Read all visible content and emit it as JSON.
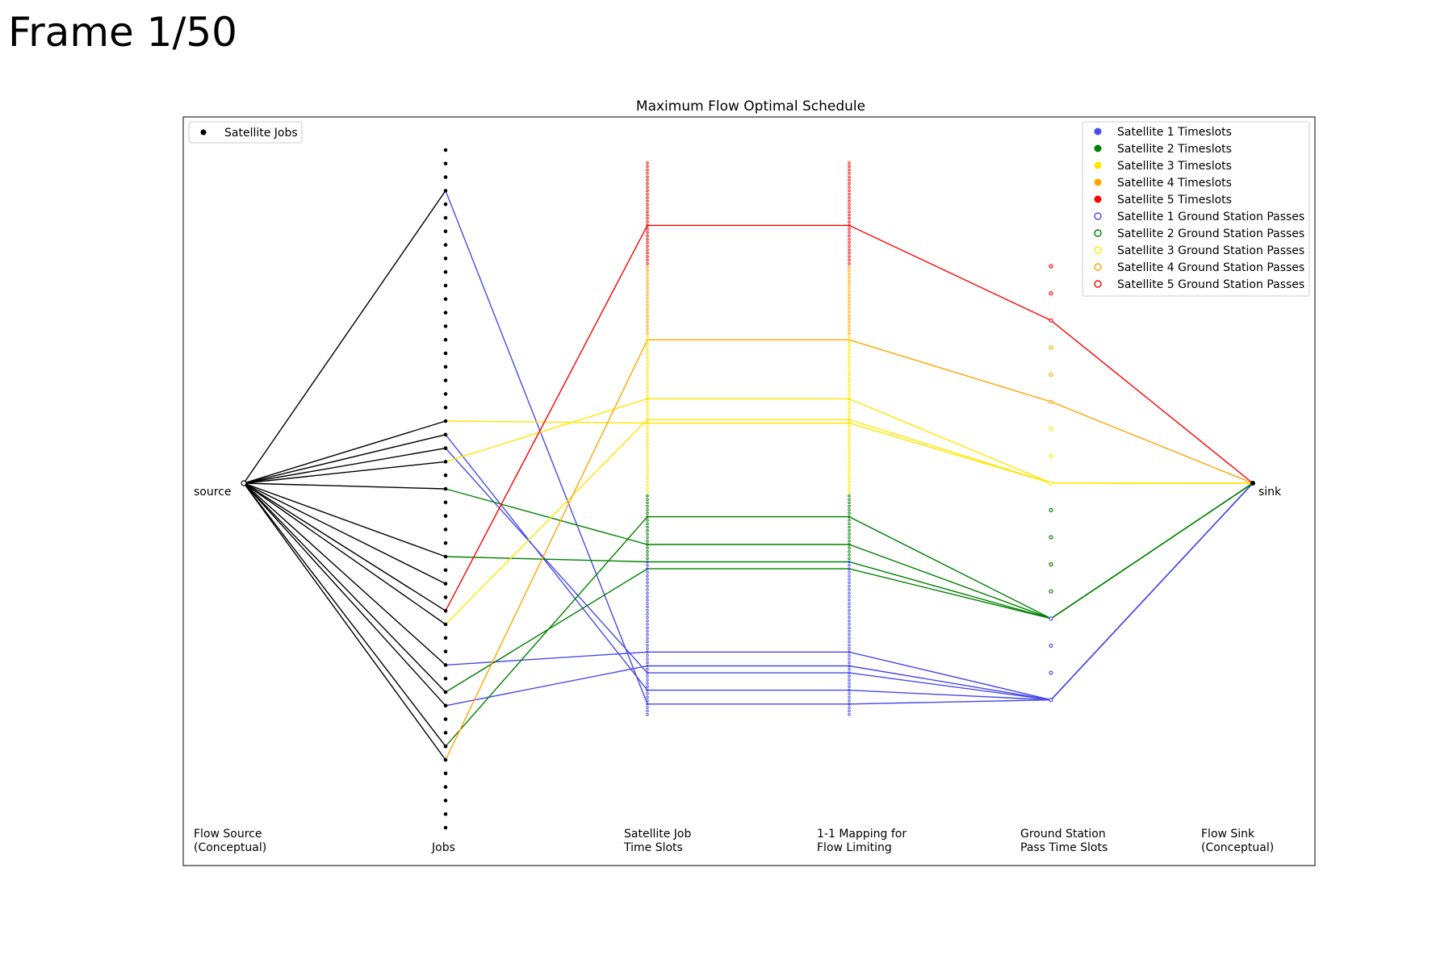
{
  "frame": {
    "label": "Frame 1/50"
  },
  "figure": {
    "title": "Maximum Flow Optimal Schedule",
    "source_label": "source",
    "sink_label": "sink",
    "columns": [
      [
        "Flow Source",
        "(Conceptual)"
      ],
      [
        "",
        "Jobs"
      ],
      [
        "Satellite Job",
        "Time Slots"
      ],
      [
        "1-1 Mapping for",
        "Flow Limiting"
      ],
      [
        "Ground Station",
        "Pass Time Slots"
      ],
      [
        "Flow Sink",
        "(Conceptual)"
      ]
    ],
    "jobs_legend": "Satellite Jobs",
    "legend": [
      {
        "label": "Satellite 1 Timeslots",
        "color": "#4a4ae8",
        "filled": true
      },
      {
        "label": "Satellite 2 Timeslots",
        "color": "#008000",
        "filled": true
      },
      {
        "label": "Satellite 3 Timeslots",
        "color": "#ffe600",
        "filled": true
      },
      {
        "label": "Satellite 4 Timeslots",
        "color": "#ffa500",
        "filled": true
      },
      {
        "label": "Satellite 5 Timeslots",
        "color": "#ff0000",
        "filled": true
      },
      {
        "label": "Satellite 1 Ground Station Passes",
        "color": "#4a4ae8",
        "filled": false
      },
      {
        "label": "Satellite 2 Ground Station Passes",
        "color": "#008000",
        "filled": false
      },
      {
        "label": "Satellite 3 Ground Station Passes",
        "color": "#ffe600",
        "filled": false
      },
      {
        "label": "Satellite 4 Ground Station Passes",
        "color": "#ffa500",
        "filled": false
      },
      {
        "label": "Satellite 5 Ground Station Passes",
        "color": "#ff0000",
        "filled": false
      }
    ],
    "satellite_colors": [
      "#4a4ae8",
      "#008000",
      "#ffe600",
      "#ffa500",
      "#ff0000"
    ]
  }
}
